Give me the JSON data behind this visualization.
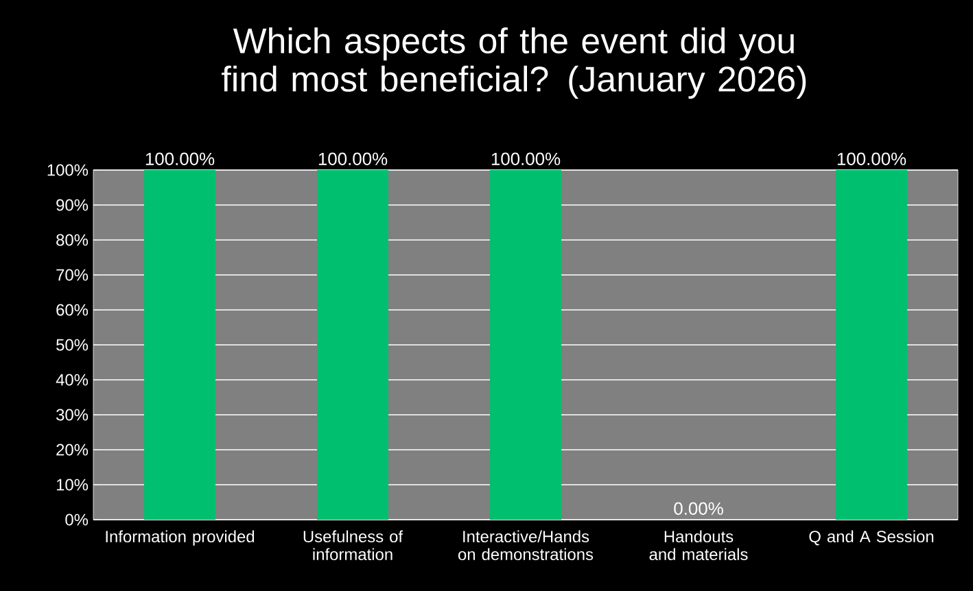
{
  "chart_data": {
    "type": "bar",
    "title": "Which aspects of the event did you find most beneficial? (January 2026)",
    "categories": [
      "Information provided",
      "Usefulness of information",
      "Interactive/Hands on demonstrations",
      "Handouts and materials",
      "Q and A Session"
    ],
    "values": [
      100,
      100,
      100,
      0,
      100
    ],
    "value_labels": [
      "100.00%",
      "100.00%",
      "100.00%",
      "0.00%",
      "100.00%"
    ],
    "color": "#00c070",
    "ylim": [
      0,
      100
    ],
    "yticks": [
      {
        "value": 0,
        "label": "0%"
      },
      {
        "value": 10,
        "label": "10%"
      },
      {
        "value": 20,
        "label": "20%"
      },
      {
        "value": 30,
        "label": "30%"
      },
      {
        "value": 40,
        "label": "40%"
      },
      {
        "value": 50,
        "label": "50%"
      },
      {
        "value": 60,
        "label": "60%"
      },
      {
        "value": 70,
        "label": "70%"
      },
      {
        "value": 80,
        "label": "80%"
      },
      {
        "value": 90,
        "label": "90%"
      },
      {
        "value": 100,
        "label": "100%"
      }
    ],
    "grid": "y"
  }
}
